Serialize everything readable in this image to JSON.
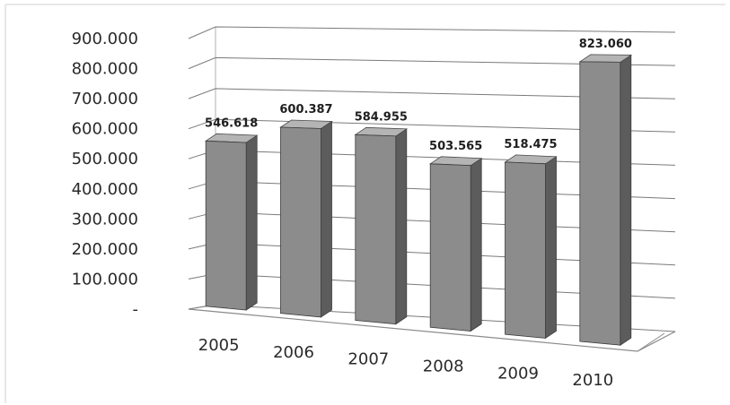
{
  "chart_data": {
    "type": "bar",
    "title": "",
    "xlabel": "",
    "ylabel": "",
    "categories": [
      "2005",
      "2006",
      "2007",
      "2008",
      "2009",
      "2010"
    ],
    "values": [
      546618,
      600387,
      584955,
      503565,
      518475,
      823060
    ],
    "value_labels": [
      "546.618",
      "600.387",
      "584.955",
      "503.565",
      "518.475",
      "823.060"
    ],
    "ylim": [
      0,
      900000
    ],
    "yticks": [
      0,
      100000,
      200000,
      300000,
      400000,
      500000,
      600000,
      700000,
      800000,
      900000
    ],
    "ytick_labels": [
      "-",
      "100.000",
      "200.000",
      "300.000",
      "400.000",
      "500.000",
      "600.000",
      "700.000",
      "800.000",
      "900.000"
    ],
    "grid": true,
    "legend": "none",
    "style": "3d-columns",
    "colors": {
      "bar_front": "#8c8c8c",
      "bar_side": "#5c5c5c",
      "bar_top": "#b4b4b4",
      "grid": "#7a7a7a"
    }
  }
}
